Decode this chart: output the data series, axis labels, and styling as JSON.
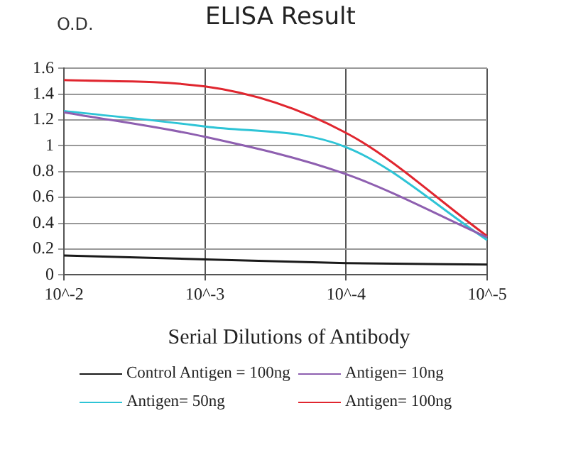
{
  "chart_data": {
    "type": "line",
    "title": "ELISA Result",
    "ylabel": "O.D.",
    "xlabel": "Serial Dilutions of Antibody",
    "categories": [
      "10^-2",
      "10^-3",
      "10^-4",
      "10^-5"
    ],
    "series": [
      {
        "name": "Control Antigen = 100ng",
        "color": "#1a1a1a",
        "values": [
          0.15,
          0.12,
          0.09,
          0.08
        ]
      },
      {
        "name": "Antigen= 10ng",
        "color": "#8e5fb0",
        "values": [
          1.26,
          1.07,
          0.78,
          0.29
        ]
      },
      {
        "name": "Antigen= 50ng",
        "color": "#2ec4d6",
        "values": [
          1.27,
          1.15,
          0.99,
          0.27
        ]
      },
      {
        "name": "Antigen= 100ng",
        "color": "#e0262f",
        "values": [
          1.51,
          1.46,
          1.1,
          0.3
        ]
      }
    ],
    "ylim": [
      0,
      1.6
    ],
    "yticks": [
      0,
      0.2,
      0.4,
      0.6,
      0.8,
      1,
      1.2,
      1.4,
      1.6
    ],
    "grid": true,
    "legend": "bottom",
    "marker": "none",
    "line_style": "solid"
  }
}
